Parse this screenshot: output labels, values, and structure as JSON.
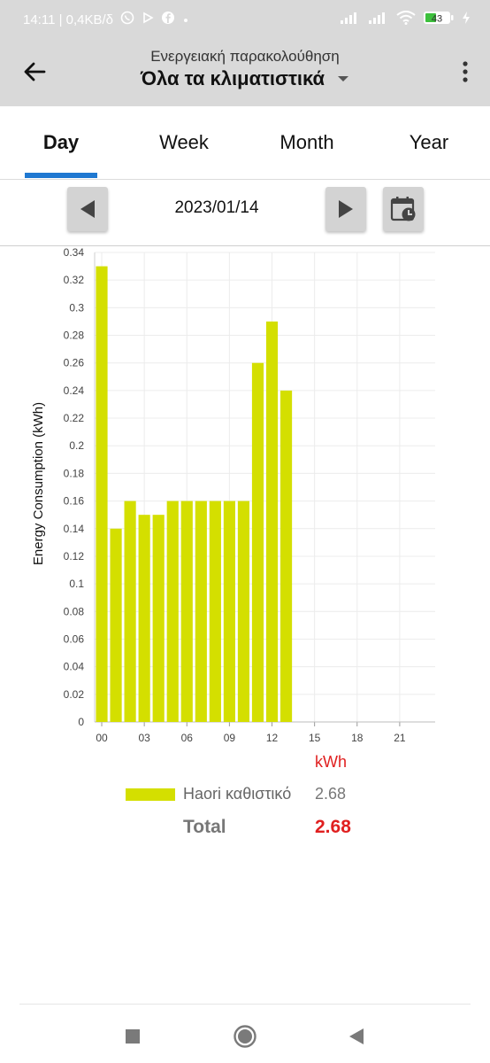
{
  "status_bar": {
    "time_speed": "14:11 | 0,4KB/δ",
    "battery": "43",
    "icons": [
      "viber-icon",
      "play-icon",
      "facebook-icon",
      "dot-icon",
      "signal-icon",
      "signal-icon",
      "wifi-icon",
      "battery-icon",
      "charging-icon"
    ]
  },
  "app_bar": {
    "subtitle": "Ενεργειακή παρακολούθηση",
    "title": "Όλα τα κλιματιστικά"
  },
  "tabs": [
    {
      "label": "Day",
      "active": true
    },
    {
      "label": "Week",
      "active": false
    },
    {
      "label": "Month",
      "active": false
    },
    {
      "label": "Year",
      "active": false
    }
  ],
  "date_nav": {
    "date": "2023/01/14"
  },
  "colors": {
    "bar": "#d4df00",
    "accent": "#1f78d1",
    "total": "#e02020"
  },
  "chart_data": {
    "type": "bar",
    "ylabel": "Energy Consumption (kWh)",
    "xlabel": "",
    "ylim": [
      0,
      0.34
    ],
    "y_ticks": [
      "0",
      "0.02",
      "0.04",
      "0.06",
      "0.08",
      "0.1",
      "0.12",
      "0.14",
      "0.16",
      "0.18",
      "0.2",
      "0.22",
      "0.24",
      "0.26",
      "0.28",
      "0.3",
      "0.32",
      "0.34"
    ],
    "x_ticks": [
      "00",
      "03",
      "06",
      "09",
      "12",
      "15",
      "18",
      "21"
    ],
    "grid": true,
    "hours": [
      0,
      1,
      2,
      3,
      4,
      5,
      6,
      7,
      8,
      9,
      10,
      11,
      12,
      13
    ],
    "values": [
      0.33,
      0.14,
      0.16,
      0.15,
      0.15,
      0.16,
      0.16,
      0.16,
      0.16,
      0.16,
      0.16,
      0.26,
      0.29,
      0.24
    ]
  },
  "legend": {
    "unit": "kWh",
    "device_name": "Haori καθιστικό",
    "device_value": "2.68",
    "total_label": "Total",
    "total_value": "2.68"
  }
}
